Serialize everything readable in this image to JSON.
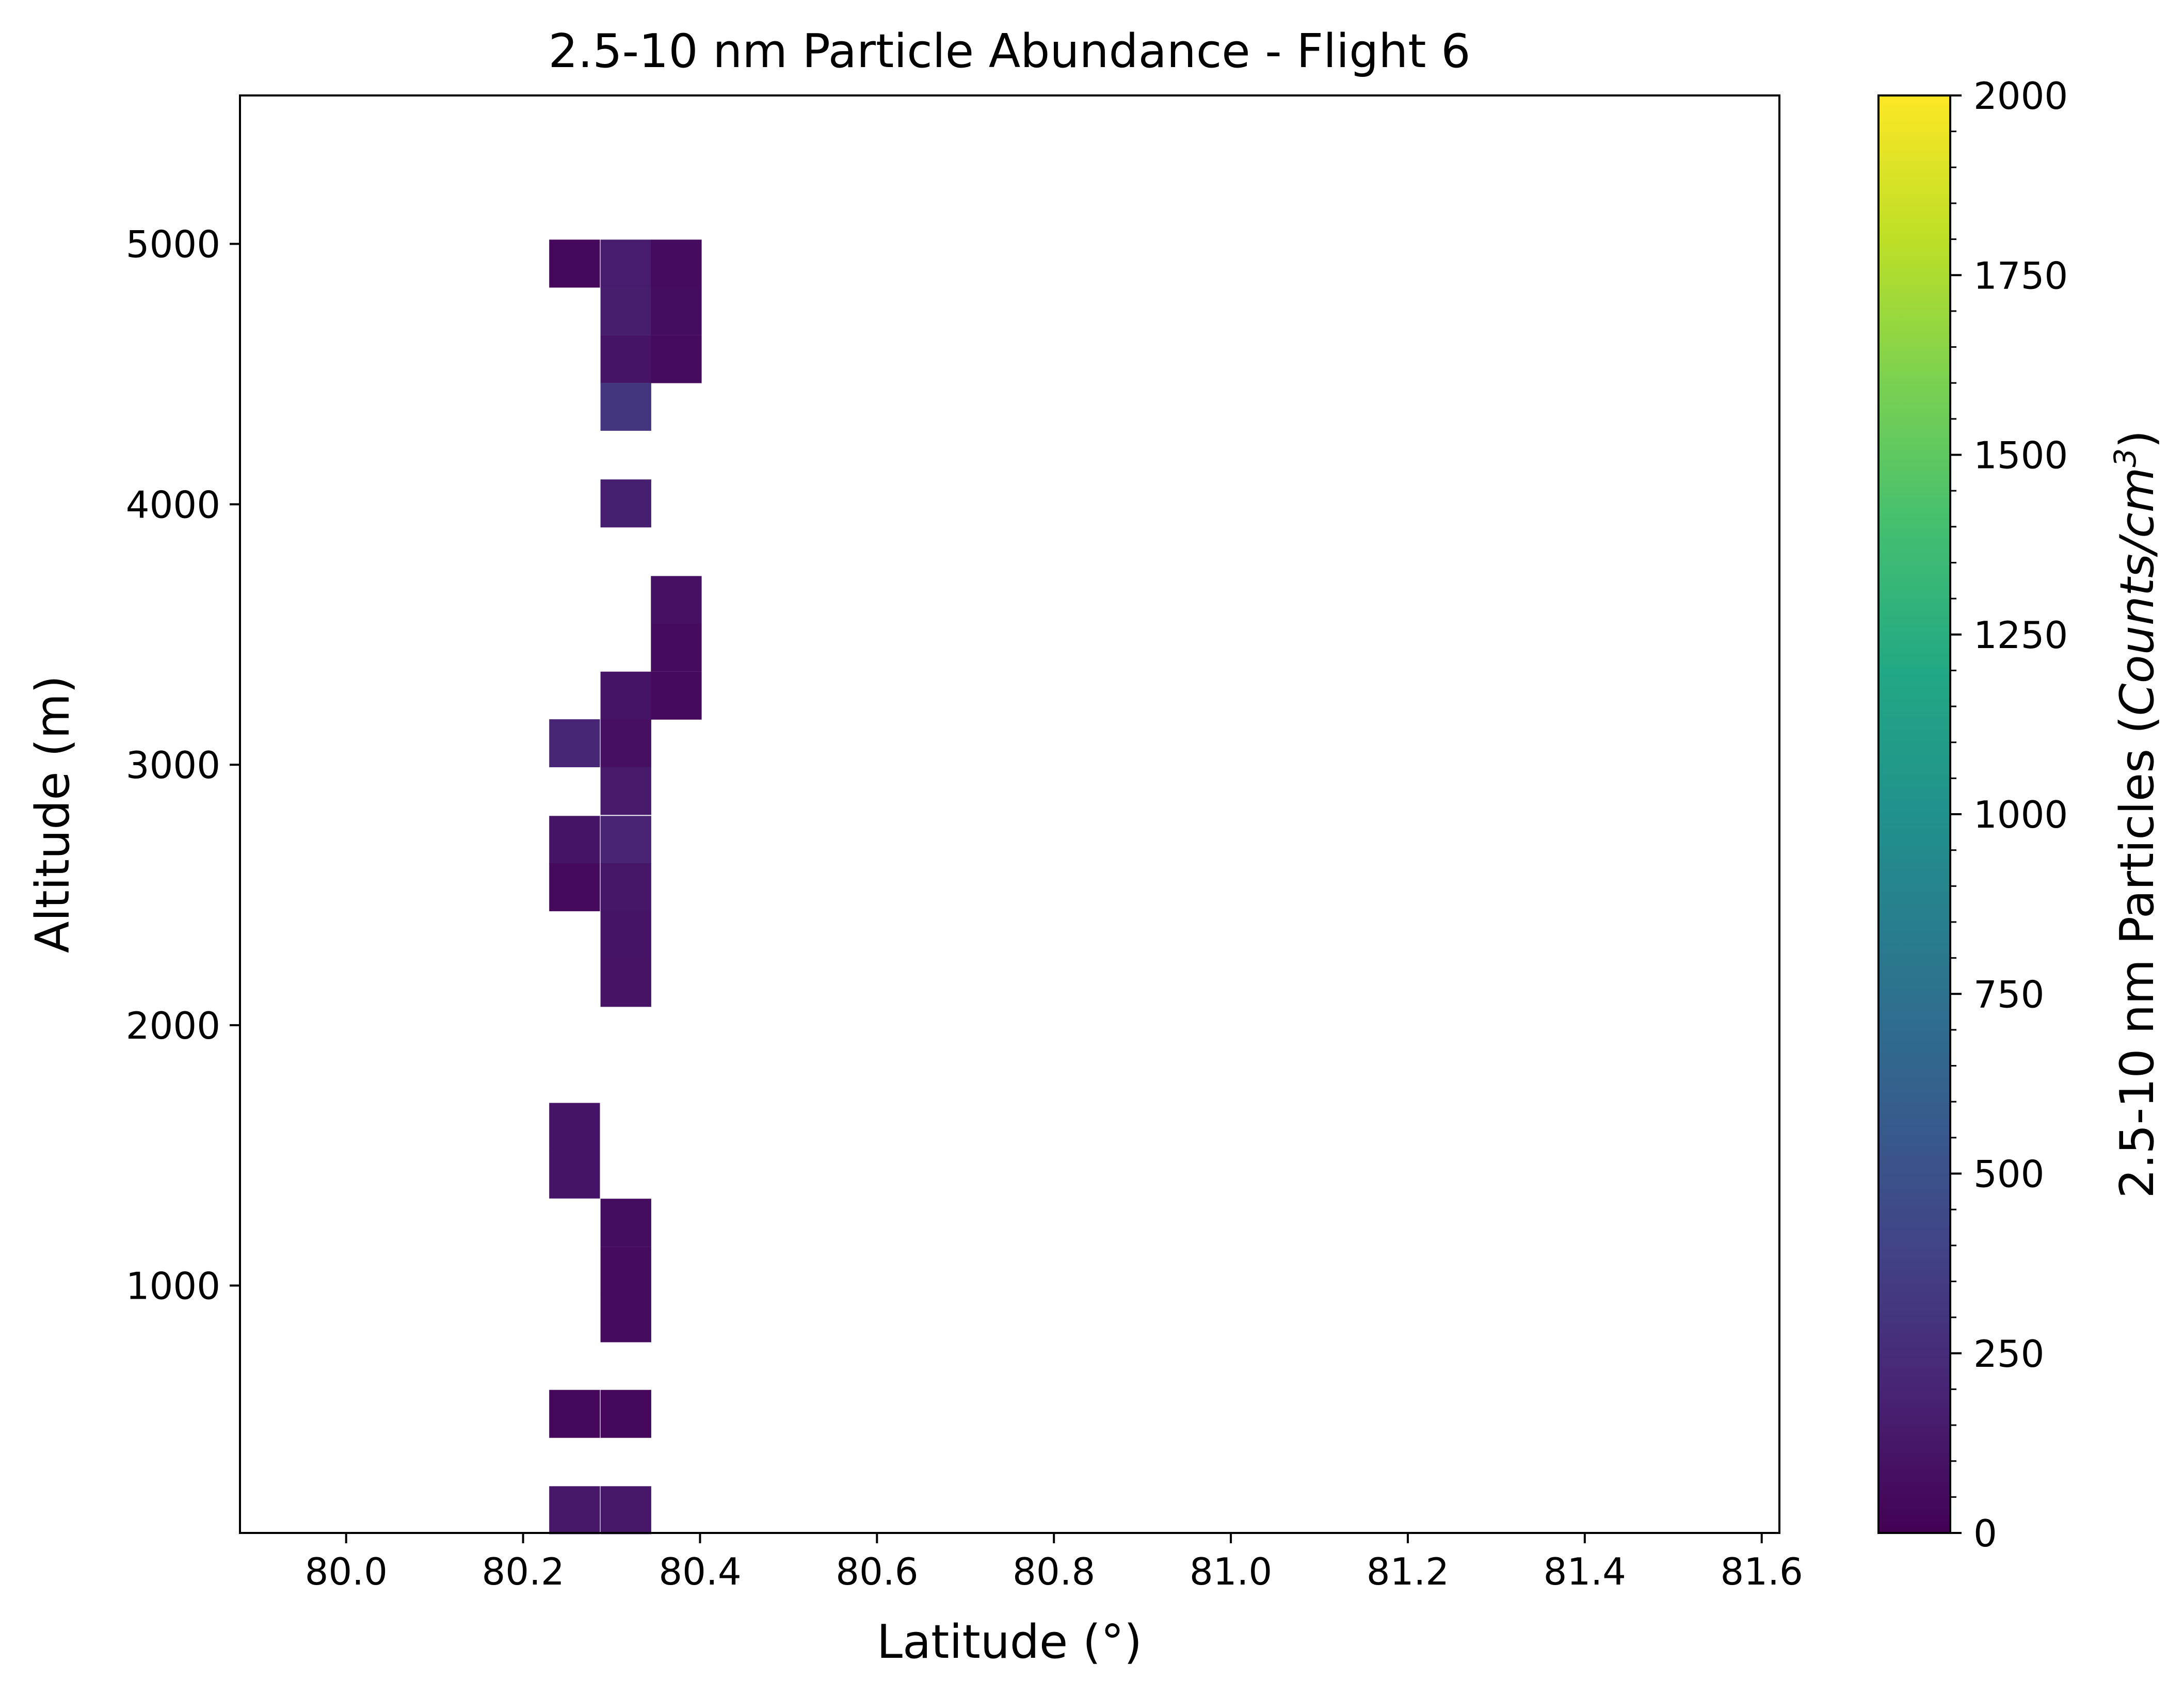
{
  "chart_data": {
    "type": "heatmap",
    "title": "2.5-10 nm Particle Abundance - Flight 6",
    "xlabel": "Latitude (°)",
    "ylabel": "Altitude (m)",
    "xlim": [
      79.88,
      81.62
    ],
    "ylim": [
      50,
      5570
    ],
    "xticks": [
      80.0,
      80.2,
      80.4,
      80.6,
      80.8,
      81.0,
      81.2,
      81.4,
      81.6
    ],
    "xtick_labels": [
      "80.0",
      "80.2",
      "80.4",
      "80.6",
      "80.8",
      "81.0",
      "81.2",
      "81.4",
      "81.6"
    ],
    "yticks": [
      1000,
      2000,
      3000,
      4000,
      5000
    ],
    "ytick_labels": [
      "1000",
      "2000",
      "3000",
      "4000",
      "5000"
    ],
    "colormap": "viridis",
    "colorbar": {
      "label_main": "2.5-10 nm Particles (",
      "label_italic": "Counts/cm",
      "label_sup": "3",
      "label_close": ")",
      "vmin": 0,
      "vmax": 2000,
      "ticks": [
        0,
        250,
        500,
        750,
        1000,
        1250,
        1500,
        1750,
        2000
      ],
      "tick_labels": [
        "0",
        "250",
        "500",
        "750",
        "1000",
        "1250",
        "1500",
        "1750",
        "2000"
      ],
      "minor_step": 50
    },
    "cell_width_deg": 0.057,
    "cell_height_m": 183,
    "cells": [
      {
        "lat": 80.258,
        "alt": 4925,
        "value": 40
      },
      {
        "lat": 80.316,
        "alt": 4925,
        "value": 150
      },
      {
        "lat": 80.373,
        "alt": 4925,
        "value": 60
      },
      {
        "lat": 80.316,
        "alt": 4742,
        "value": 160
      },
      {
        "lat": 80.373,
        "alt": 4742,
        "value": 70
      },
      {
        "lat": 80.316,
        "alt": 4558,
        "value": 110
      },
      {
        "lat": 80.373,
        "alt": 4558,
        "value": 60
      },
      {
        "lat": 80.316,
        "alt": 4375,
        "value": 300
      },
      {
        "lat": 80.316,
        "alt": 4004,
        "value": 170
      },
      {
        "lat": 80.373,
        "alt": 3633,
        "value": 90
      },
      {
        "lat": 80.373,
        "alt": 3450,
        "value": 60
      },
      {
        "lat": 80.316,
        "alt": 3266,
        "value": 110
      },
      {
        "lat": 80.373,
        "alt": 3266,
        "value": 50
      },
      {
        "lat": 80.258,
        "alt": 3083,
        "value": 210
      },
      {
        "lat": 80.316,
        "alt": 3083,
        "value": 80
      },
      {
        "lat": 80.316,
        "alt": 2900,
        "value": 140
      },
      {
        "lat": 80.258,
        "alt": 2712,
        "value": 110
      },
      {
        "lat": 80.316,
        "alt": 2712,
        "value": 190
      },
      {
        "lat": 80.258,
        "alt": 2530,
        "value": 50
      },
      {
        "lat": 80.316,
        "alt": 2530,
        "value": 120
      },
      {
        "lat": 80.316,
        "alt": 2347,
        "value": 110
      },
      {
        "lat": 80.316,
        "alt": 2163,
        "value": 100
      },
      {
        "lat": 80.258,
        "alt": 1610,
        "value": 110
      },
      {
        "lat": 80.258,
        "alt": 1427,
        "value": 110
      },
      {
        "lat": 80.316,
        "alt": 1242,
        "value": 70
      },
      {
        "lat": 80.316,
        "alt": 1058,
        "value": 60
      },
      {
        "lat": 80.316,
        "alt": 875,
        "value": 60
      },
      {
        "lat": 80.258,
        "alt": 508,
        "value": 40
      },
      {
        "lat": 80.316,
        "alt": 508,
        "value": 40
      },
      {
        "lat": 80.258,
        "alt": 138,
        "value": 130
      },
      {
        "lat": 80.316,
        "alt": 138,
        "value": 130
      }
    ]
  }
}
